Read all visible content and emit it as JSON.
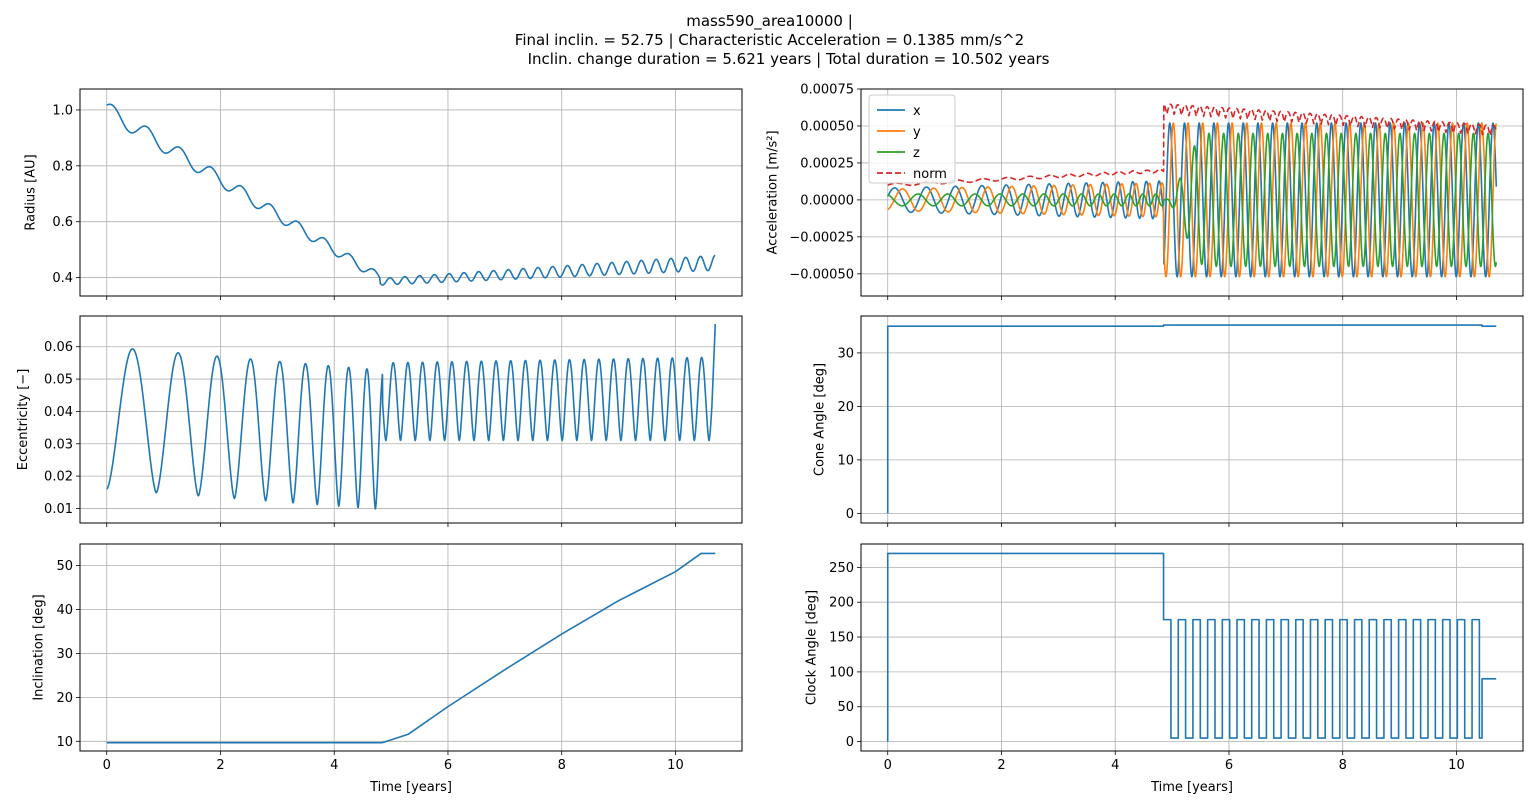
{
  "figure": {
    "title_lines": [
      "mass590_area10000 |",
      "Final inclin. = 52.75 | Characteristic Acceleration = 0.1385 mm/s^2",
      "        Inclin. change duration = 5.621 years | Total duration = 10.502 years"
    ]
  },
  "colors": {
    "blue": "#1f77b4",
    "orange": "#ff7f0e",
    "green": "#2ca02c",
    "red": "#d62728",
    "grid": "#b0b0b0"
  },
  "chart_data": [
    {
      "id": "radius",
      "type": "line",
      "title": "",
      "xlabel": "",
      "ylabel": "Radius [AU]",
      "xlim": [
        -0.47,
        11.17
      ],
      "ylim": [
        0.334,
        1.075
      ],
      "xticks": [
        0,
        2,
        4,
        6,
        8,
        10
      ],
      "xtick_labels": [
        "",
        "",
        "",
        "",
        "",
        ""
      ],
      "yticks": [
        0.4,
        0.6,
        0.8,
        1.0
      ],
      "ytick_labels": [
        "0.4",
        "0.6",
        "0.8",
        "1.0"
      ],
      "series": [
        {
          "name": "radius",
          "color": "blue",
          "dash": false,
          "model": {
            "kind": "radius",
            "end": 10.7
          }
        }
      ]
    },
    {
      "id": "acceleration",
      "type": "line",
      "title": "",
      "xlabel": "",
      "ylabel": "Acceleration [m/s²]",
      "xlim": [
        -0.47,
        11.17
      ],
      "ylim": [
        -0.00065,
        0.00075
      ],
      "xticks": [
        0,
        2,
        4,
        6,
        8,
        10
      ],
      "xtick_labels": [
        "",
        "",
        "",
        "",
        "",
        ""
      ],
      "yticks": [
        -0.0005,
        -0.00025,
        0.0,
        0.00025,
        0.0005,
        0.00075
      ],
      "ytick_labels": [
        "−0.00050",
        "−0.00025",
        "0.00000",
        "0.00025",
        "0.00050",
        "0.00075"
      ],
      "legend": {
        "position": "top-left",
        "entries": [
          "x",
          "y",
          "z",
          "norm"
        ]
      },
      "series": [
        {
          "name": "x",
          "color": "blue",
          "dash": false,
          "model": {
            "kind": "accel",
            "component": "x",
            "end": 10.7
          }
        },
        {
          "name": "y",
          "color": "orange",
          "dash": false,
          "model": {
            "kind": "accel",
            "component": "y",
            "end": 10.7
          }
        },
        {
          "name": "z",
          "color": "green",
          "dash": false,
          "model": {
            "kind": "accel",
            "component": "z",
            "end": 10.7
          }
        },
        {
          "name": "norm",
          "color": "red",
          "dash": true,
          "model": {
            "kind": "accel",
            "component": "norm",
            "end": 10.7
          }
        }
      ]
    },
    {
      "id": "eccentricity",
      "type": "line",
      "title": "",
      "xlabel": "",
      "ylabel": "Eccentricity [−]",
      "xlim": [
        -0.47,
        11.17
      ],
      "ylim": [
        0.0055,
        0.0695
      ],
      "xticks": [
        0,
        2,
        4,
        6,
        8,
        10
      ],
      "xtick_labels": [
        "",
        "",
        "",
        "",
        "",
        ""
      ],
      "yticks": [
        0.01,
        0.02,
        0.03,
        0.04,
        0.05,
        0.06
      ],
      "ytick_labels": [
        "0.01",
        "0.02",
        "0.03",
        "0.04",
        "0.05",
        "0.06"
      ],
      "series": [
        {
          "name": "eccentricity",
          "color": "blue",
          "dash": false,
          "model": {
            "kind": "ecc",
            "end": 10.7,
            "final": 0.067
          }
        }
      ]
    },
    {
      "id": "cone",
      "type": "line",
      "title": "",
      "xlabel": "",
      "ylabel": "Cone Angle [deg]",
      "xlim": [
        -0.47,
        11.17
      ],
      "ylim": [
        -1.8,
        36.9
      ],
      "xticks": [
        0,
        2,
        4,
        6,
        8,
        10
      ],
      "xtick_labels": [
        "",
        "",
        "",
        "",
        "",
        ""
      ],
      "yticks": [
        0,
        10,
        20,
        30
      ],
      "ytick_labels": [
        "0",
        "10",
        "20",
        "30"
      ],
      "series": [
        {
          "name": "cone",
          "color": "blue",
          "dash": false,
          "points": [
            [
              0,
              0
            ],
            [
              0,
              35
            ],
            [
              4.85,
              35
            ],
            [
              4.85,
              35.2
            ],
            [
              10.45,
              35.2
            ],
            [
              10.45,
              35
            ],
            [
              10.7,
              35
            ]
          ]
        }
      ]
    },
    {
      "id": "inclination",
      "type": "line",
      "title": "",
      "xlabel": "Time [years]",
      "ylabel": "Inclination [deg]",
      "xlim": [
        -0.47,
        11.17
      ],
      "ylim": [
        7.8,
        54.9
      ],
      "xticks": [
        0,
        2,
        4,
        6,
        8,
        10
      ],
      "xtick_labels": [
        "0",
        "2",
        "4",
        "6",
        "8",
        "10"
      ],
      "yticks": [
        10,
        20,
        30,
        40,
        50
      ],
      "ytick_labels": [
        "10",
        "20",
        "30",
        "40",
        "50"
      ],
      "series": [
        {
          "name": "inclination",
          "color": "blue",
          "dash": false,
          "points": [
            [
              0,
              9.7
            ],
            [
              4.85,
              9.7
            ],
            [
              5.3,
              11.6
            ],
            [
              6,
              17.9
            ],
            [
              7,
              26.3
            ],
            [
              8,
              34.4
            ],
            [
              9,
              42.0
            ],
            [
              10,
              48.6
            ],
            [
              10.45,
              52.75
            ],
            [
              10.7,
              52.75
            ]
          ]
        }
      ]
    },
    {
      "id": "clock",
      "type": "line",
      "title": "",
      "xlabel": "Time [years]",
      "ylabel": "Clock Angle [deg]",
      "xlim": [
        -0.47,
        11.17
      ],
      "ylim": [
        -13.5,
        283.5
      ],
      "xticks": [
        0,
        2,
        4,
        6,
        8,
        10
      ],
      "xtick_labels": [
        "0",
        "2",
        "4",
        "6",
        "8",
        "10"
      ],
      "yticks": [
        0,
        50,
        100,
        150,
        200,
        250
      ],
      "ytick_labels": [
        "0",
        "50",
        "100",
        "150",
        "200",
        "250"
      ],
      "series": [
        {
          "name": "clock",
          "color": "blue",
          "dash": false,
          "model": {
            "kind": "clock",
            "start": 4.85,
            "period": 0.2583,
            "high": 175,
            "low": 5,
            "switch_end": 10.45,
            "final": 90,
            "end": 10.7
          }
        }
      ]
    }
  ]
}
